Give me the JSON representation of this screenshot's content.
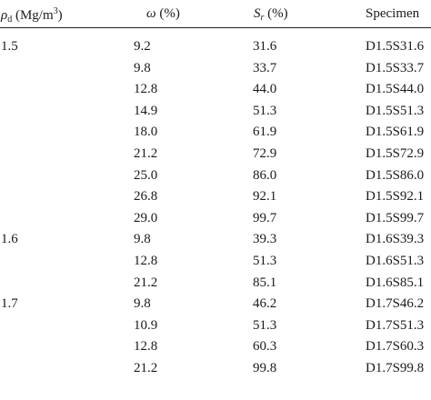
{
  "table": {
    "headers": {
      "density_symbol": "ρ",
      "density_subscript": "d",
      "density_unit_prefix": " (Mg/m",
      "density_unit_power": "3",
      "density_unit_suffix": ")",
      "water_content_symbol": "ω",
      "water_content_unit": " (%)",
      "saturation_symbol": "S",
      "saturation_subscript": "r",
      "saturation_unit": " (%)",
      "specimen": "Specimen"
    },
    "rows": [
      {
        "density": "1.5",
        "water_content": "9.2",
        "saturation": "31.6",
        "specimen": "D1.5S31.6"
      },
      {
        "density": "",
        "water_content": "9.8",
        "saturation": "33.7",
        "specimen": "D1.5S33.7"
      },
      {
        "density": "",
        "water_content": "12.8",
        "saturation": "44.0",
        "specimen": "D1.5S44.0"
      },
      {
        "density": "",
        "water_content": "14.9",
        "saturation": "51.3",
        "specimen": "D1.5S51.3"
      },
      {
        "density": "",
        "water_content": "18.0",
        "saturation": "61.9",
        "specimen": "D1.5S61.9"
      },
      {
        "density": "",
        "water_content": "21.2",
        "saturation": "72.9",
        "specimen": "D1.5S72.9"
      },
      {
        "density": "",
        "water_content": "25.0",
        "saturation": "86.0",
        "specimen": "D1.5S86.0"
      },
      {
        "density": "",
        "water_content": "26.8",
        "saturation": "92.1",
        "specimen": "D1.5S92.1"
      },
      {
        "density": "",
        "water_content": "29.0",
        "saturation": "99.7",
        "specimen": "D1.5S99.7"
      },
      {
        "density": "1.6",
        "water_content": "9.8",
        "saturation": "39.3",
        "specimen": "D1.6S39.3"
      },
      {
        "density": "",
        "water_content": "12.8",
        "saturation": "51.3",
        "specimen": "D1.6S51.3"
      },
      {
        "density": "",
        "water_content": "21.2",
        "saturation": "85.1",
        "specimen": "D1.6S85.1"
      },
      {
        "density": "1.7",
        "water_content": "9.8",
        "saturation": "46.2",
        "specimen": "D1.7S46.2"
      },
      {
        "density": "",
        "water_content": "10.9",
        "saturation": "51.3",
        "specimen": "D1.7S51.3"
      },
      {
        "density": "",
        "water_content": "12.8",
        "saturation": "60.3",
        "specimen": "D1.7S60.3"
      },
      {
        "density": "",
        "water_content": "21.2",
        "saturation": "99.8",
        "specimen": "D1.7S99.8"
      }
    ]
  }
}
